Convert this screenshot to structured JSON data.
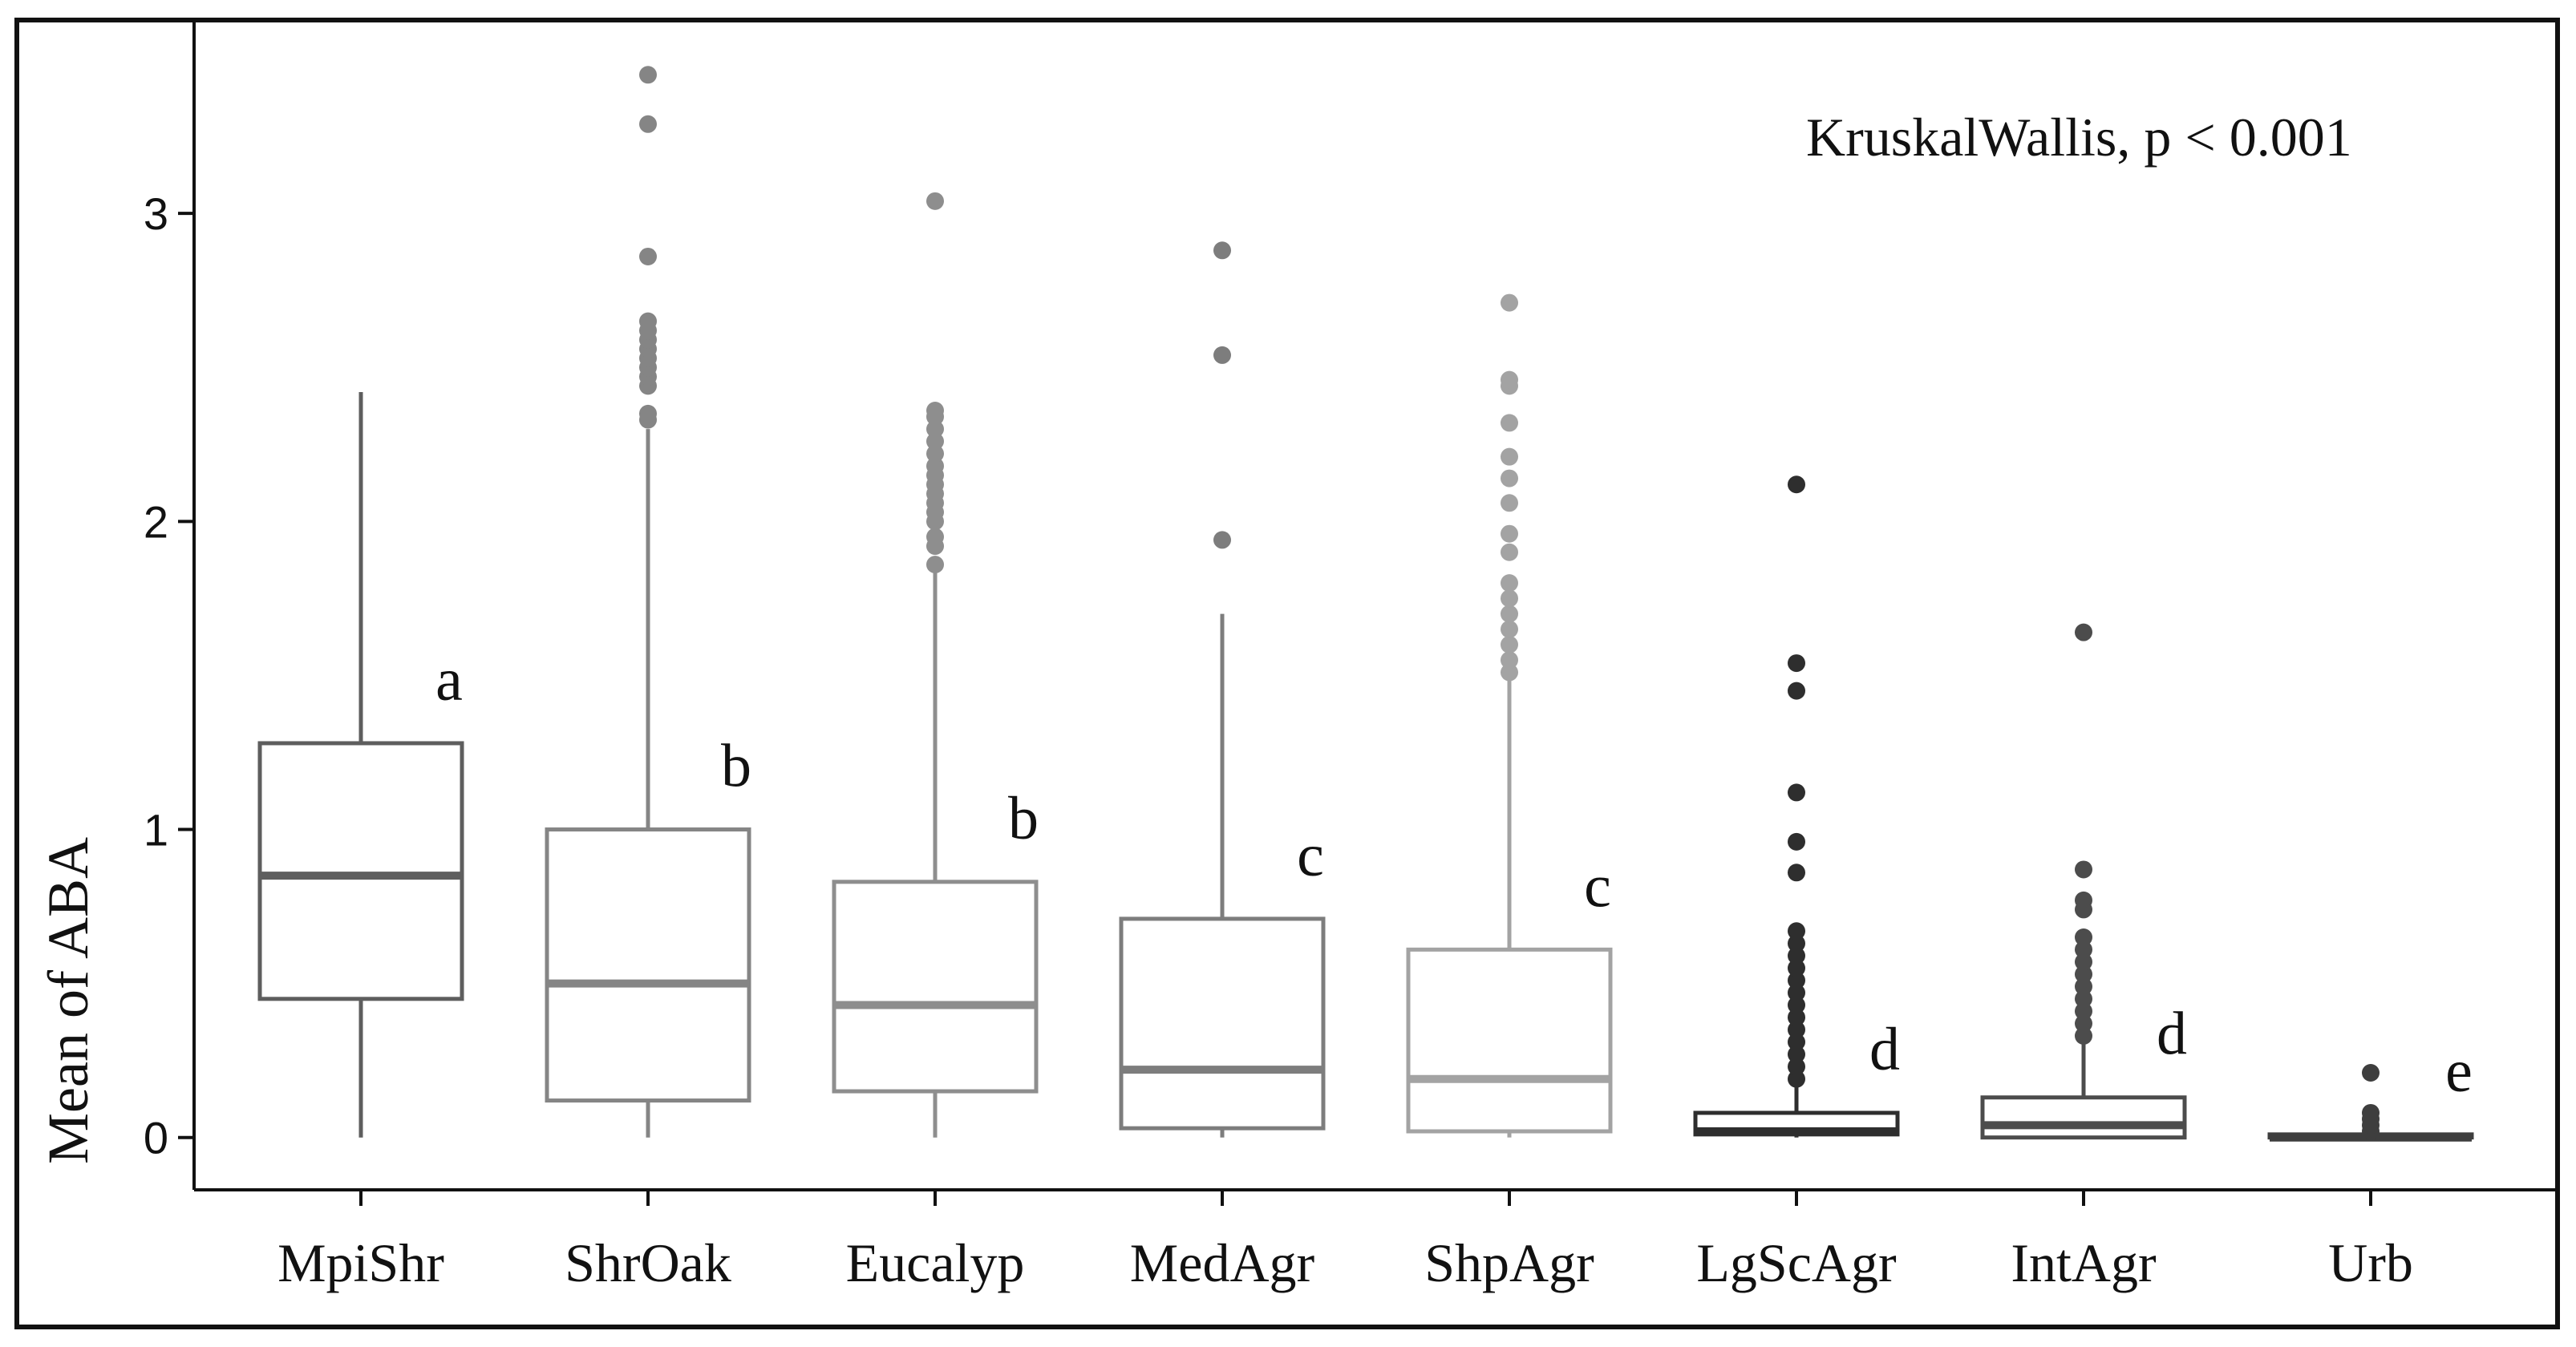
{
  "chart_data": {
    "type": "box",
    "title": "",
    "xlabel": "",
    "ylabel": "Mean of ABA",
    "ylim": [
      -0.17,
      3.62
    ],
    "yticks": [
      0,
      1,
      2,
      3
    ],
    "annotation": "KruskalWallis, p < 0.001",
    "grid": false,
    "categories": [
      "MpiShr",
      "ShrOak",
      "Eucalyp",
      "MedAgr",
      "ShpAgr",
      "LgScAgr",
      "IntAgr",
      "Urb"
    ],
    "groups": [
      {
        "name": "MpiShr",
        "color": "#5e5e5e",
        "whisker_low": 0.0,
        "q1": 0.45,
        "median": 0.85,
        "q3": 1.28,
        "whisker_high": 2.42,
        "letter": "a",
        "outliers": []
      },
      {
        "name": "ShrOak",
        "color": "#858585",
        "whisker_low": 0.0,
        "q1": 0.12,
        "median": 0.5,
        "q3": 1.0,
        "whisker_high": 2.3,
        "letter": "b",
        "outliers": [
          2.33,
          2.35,
          2.44,
          2.47,
          2.5,
          2.53,
          2.56,
          2.59,
          2.62,
          2.65,
          2.86,
          3.29,
          3.45
        ]
      },
      {
        "name": "Eucalyp",
        "color": "#8e8e8e",
        "whisker_low": 0.0,
        "q1": 0.15,
        "median": 0.43,
        "q3": 0.83,
        "whisker_high": 1.84,
        "letter": "b",
        "outliers": [
          1.86,
          1.92,
          1.95,
          2.0,
          2.03,
          2.06,
          2.09,
          2.12,
          2.15,
          2.18,
          2.22,
          2.26,
          2.3,
          2.34,
          2.36,
          3.04
        ]
      },
      {
        "name": "MedAgr",
        "color": "#7d7d7d",
        "whisker_low": 0.0,
        "q1": 0.03,
        "median": 0.22,
        "q3": 0.71,
        "whisker_high": 1.7,
        "letter": "c",
        "outliers": [
          1.94,
          2.54,
          2.88
        ]
      },
      {
        "name": "ShpAgr",
        "color": "#a3a3a3",
        "whisker_low": 0.0,
        "q1": 0.02,
        "median": 0.19,
        "q3": 0.61,
        "whisker_high": 1.49,
        "letter": "c",
        "outliers": [
          1.51,
          1.55,
          1.6,
          1.65,
          1.7,
          1.75,
          1.8,
          1.9,
          1.96,
          2.06,
          2.14,
          2.21,
          2.32,
          2.44,
          2.46,
          2.71
        ]
      },
      {
        "name": "LgScAgr",
        "color": "#2e2e2e",
        "whisker_low": 0.0,
        "q1": 0.01,
        "median": 0.02,
        "q3": 0.08,
        "whisker_high": 0.17,
        "letter": "d",
        "outliers": [
          0.19,
          0.23,
          0.27,
          0.31,
          0.35,
          0.39,
          0.43,
          0.47,
          0.51,
          0.55,
          0.59,
          0.63,
          0.67,
          0.86,
          0.96,
          1.12,
          1.45,
          1.54,
          2.12
        ]
      },
      {
        "name": "IntAgr",
        "color": "#4c4c4c",
        "whisker_low": 0.0,
        "q1": 0.0,
        "median": 0.04,
        "q3": 0.13,
        "whisker_high": 0.31,
        "letter": "d",
        "outliers": [
          0.33,
          0.37,
          0.41,
          0.45,
          0.49,
          0.53,
          0.57,
          0.61,
          0.65,
          0.74,
          0.77,
          0.87,
          1.64
        ]
      },
      {
        "name": "Urb",
        "color": "#3e3e3e",
        "whisker_low": 0.0,
        "q1": 0.0,
        "median": 0.0,
        "q3": 0.01,
        "whisker_high": 0.01,
        "letter": "e",
        "outliers": [
          0.02,
          0.04,
          0.06,
          0.08,
          0.21
        ]
      }
    ]
  }
}
